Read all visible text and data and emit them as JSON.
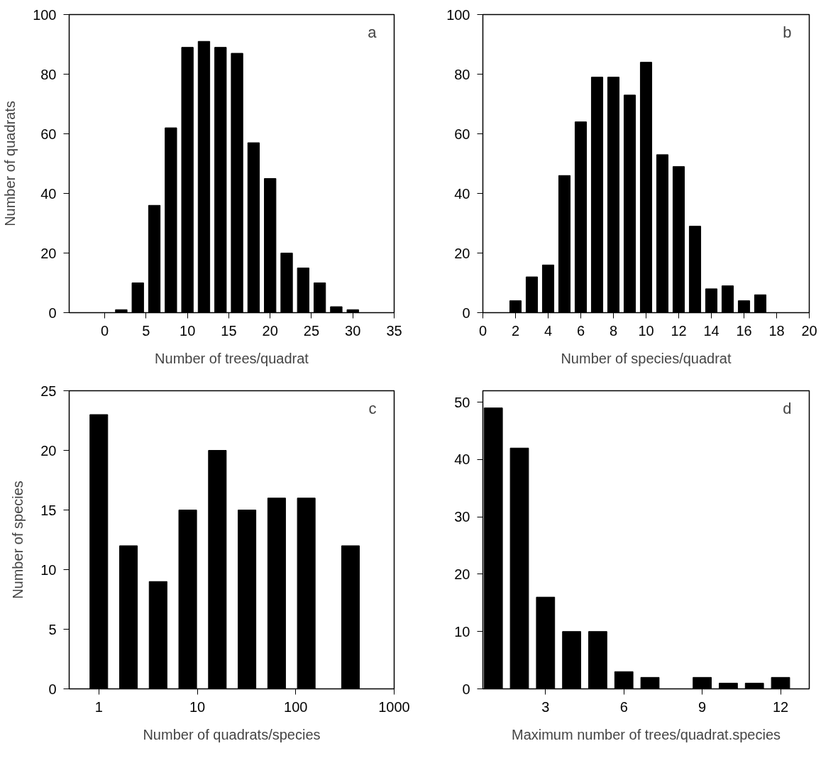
{
  "chart_data": [
    {
      "type": "bar",
      "color": "#000000",
      "x": [
        2,
        4,
        6,
        8,
        10,
        12,
        14,
        16,
        18,
        20,
        22,
        24,
        26,
        28,
        30
      ],
      "values": [
        1,
        10,
        36,
        62,
        89,
        91,
        89,
        87,
        57,
        45,
        20,
        15,
        10,
        2,
        1
      ],
      "xlim": [
        -4.3,
        35
      ],
      "ylim": [
        0,
        100
      ],
      "xticks": [
        0,
        5,
        10,
        15,
        20,
        25,
        30,
        35
      ],
      "yticks": [
        0,
        20,
        40,
        60,
        80,
        100
      ],
      "xlabel": "Number of trees/quadrat",
      "ylabel": "Number of quadrats",
      "annotations": [
        "a"
      ],
      "grid": false
    },
    {
      "type": "bar",
      "color": "#000000",
      "x": [
        2,
        3,
        4,
        5,
        6,
        7,
        8,
        9,
        10,
        11,
        12,
        13,
        14,
        15,
        16,
        17
      ],
      "values": [
        4,
        12,
        16,
        46,
        64,
        79,
        79,
        73,
        84,
        53,
        49,
        29,
        8,
        9,
        4,
        6
      ],
      "xlim": [
        0,
        20
      ],
      "ylim": [
        0,
        100
      ],
      "xticks": [
        0,
        2,
        4,
        6,
        8,
        10,
        12,
        14,
        16,
        18,
        20
      ],
      "yticks": [
        0,
        20,
        40,
        60,
        80,
        100
      ],
      "xlabel": "Number of species/quadrat",
      "annotations": [
        "b"
      ],
      "grid": false
    },
    {
      "type": "bar",
      "color": "#000000",
      "log": "x",
      "x": [
        1,
        2,
        4,
        8,
        16,
        32,
        64,
        128,
        360
      ],
      "values": [
        23,
        12,
        9,
        15,
        20,
        15,
        16,
        16,
        12
      ],
      "xlim": [
        0.5,
        1000
      ],
      "ylim": [
        0,
        25
      ],
      "xticks": [
        1,
        10,
        100,
        1000
      ],
      "yticks": [
        0,
        5,
        10,
        15,
        20,
        25
      ],
      "xlabel": "Number of quadrats/species",
      "ylabel": "Number of species",
      "annotations": [
        "c"
      ],
      "grid": false
    },
    {
      "type": "bar",
      "color": "#000000",
      "x": [
        1,
        2,
        3,
        4,
        5,
        6,
        7,
        9,
        10,
        11,
        12
      ],
      "values": [
        49,
        42,
        16,
        10,
        10,
        3,
        2,
        2,
        1,
        1,
        2
      ],
      "xlim": [
        0.6,
        13.1
      ],
      "ylim": [
        0,
        52
      ],
      "xticks": [
        3,
        6,
        9,
        12
      ],
      "yticks": [
        0,
        10,
        20,
        30,
        40,
        50
      ],
      "xlabel": "Maximum number of trees/quadrat.species",
      "annotations": [
        "d"
      ],
      "grid": false
    }
  ]
}
